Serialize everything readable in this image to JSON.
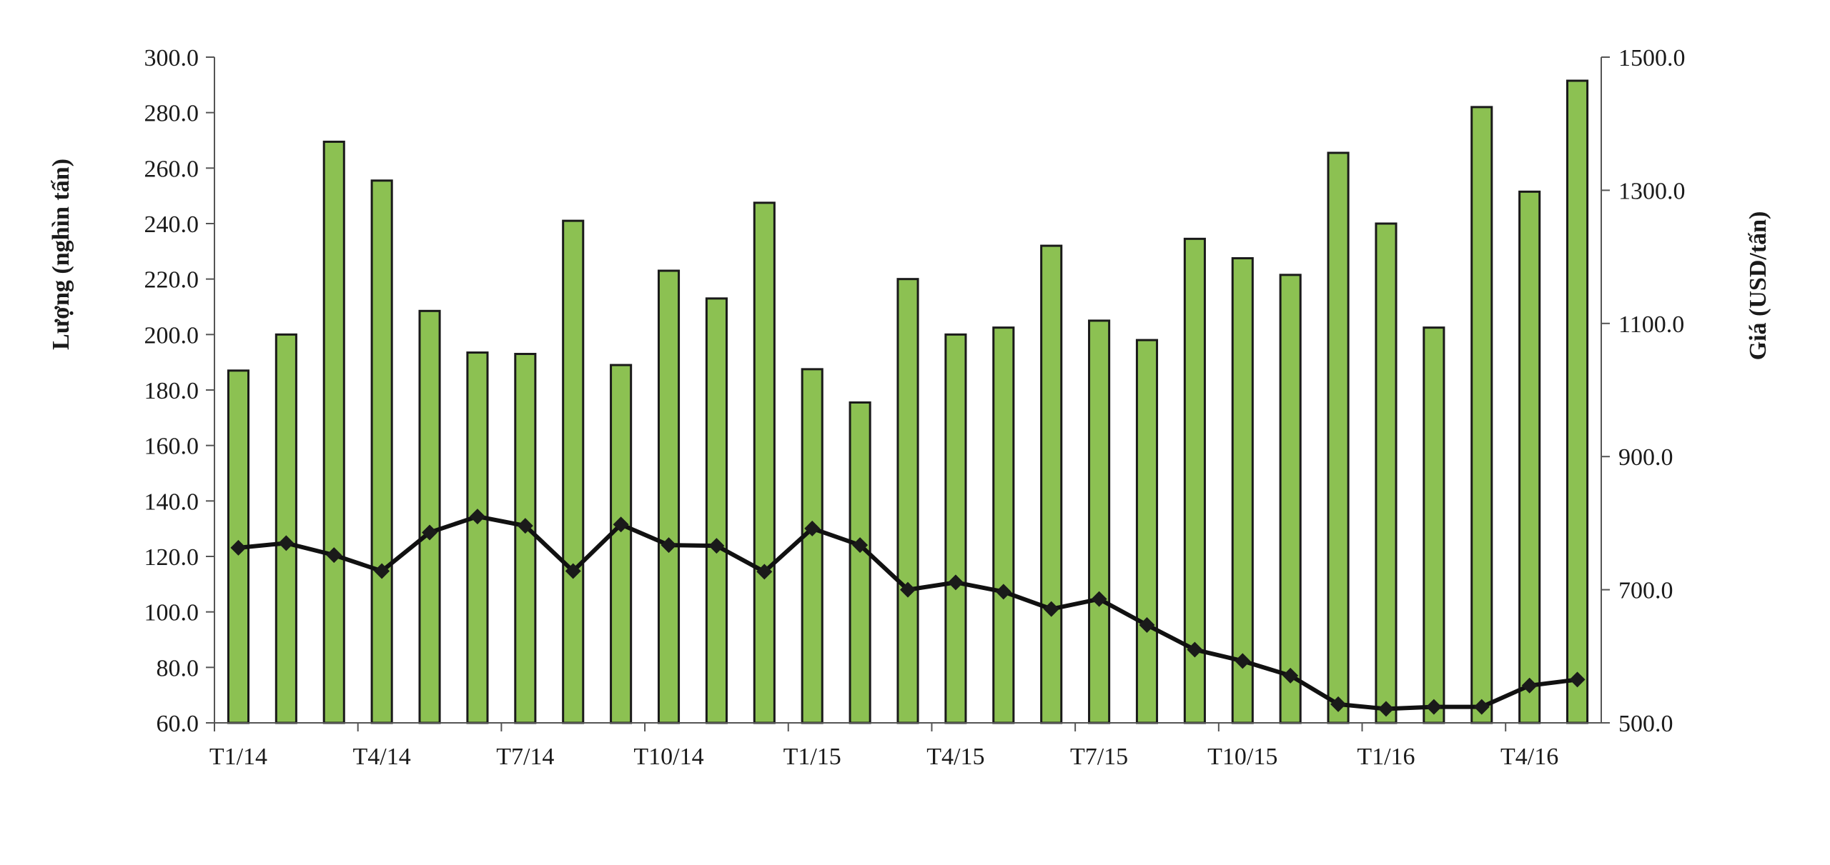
{
  "chart_data": {
    "type": "bar+line",
    "categories": [
      "T1/14",
      "",
      "",
      "T4/14",
      "",
      "",
      "T7/14",
      "",
      "",
      "T10/14",
      "",
      "",
      "T1/15",
      "",
      "",
      "T4/15",
      "",
      "",
      "T7/15",
      "",
      "",
      "T10/15",
      "",
      "",
      "T1/16",
      "",
      "",
      "T4/16",
      ""
    ],
    "x_tick_labels": [
      "T1/14",
      "T4/14",
      "T7/14",
      "T10/14",
      "T1/15",
      "T4/15",
      "T7/15",
      "T10/15",
      "T1/16",
      "T4/16"
    ],
    "series": [
      {
        "axis": "left",
        "kind": "bar",
        "values": [
          187,
          200,
          269.5,
          255.5,
          208.5,
          193.5,
          193,
          241,
          189,
          223,
          213,
          247.5,
          187.5,
          175.5,
          220,
          200,
          202.5,
          232,
          205,
          198,
          234.5,
          227.5,
          221.5,
          265.5,
          240,
          202.5,
          282,
          251.5,
          291.5
        ]
      },
      {
        "axis": "right",
        "kind": "line",
        "values": [
          763,
          770,
          752,
          728,
          786,
          810,
          796,
          728,
          798,
          767,
          766,
          727,
          792,
          767,
          700,
          711,
          697,
          671,
          686,
          647,
          610,
          593,
          571,
          528,
          521,
          524,
          524,
          556,
          565
        ]
      }
    ],
    "y_left": {
      "label": "Lượng (nghìn tấn)",
      "lim": [
        60,
        300
      ],
      "ticks": [
        "300.0",
        "280.0",
        "260.0",
        "240.0",
        "220.0",
        "200.0",
        "180.0",
        "160.0",
        "140.0",
        "120.0",
        "100.0",
        "80.0",
        "60.0"
      ]
    },
    "y_right": {
      "label": "Giá (USD/tấn)",
      "lim": [
        500,
        1500
      ],
      "ticks": [
        "1500.0",
        "1300.0",
        "1100.0",
        "900.0",
        "700.0",
        "500.0"
      ]
    },
    "colors": {
      "bar_fill": "#8cc152",
      "bar_stroke": "#1a1a1a",
      "line": "#111111",
      "marker": "#1a1a1a"
    },
    "legend": "none",
    "grid": false
  }
}
